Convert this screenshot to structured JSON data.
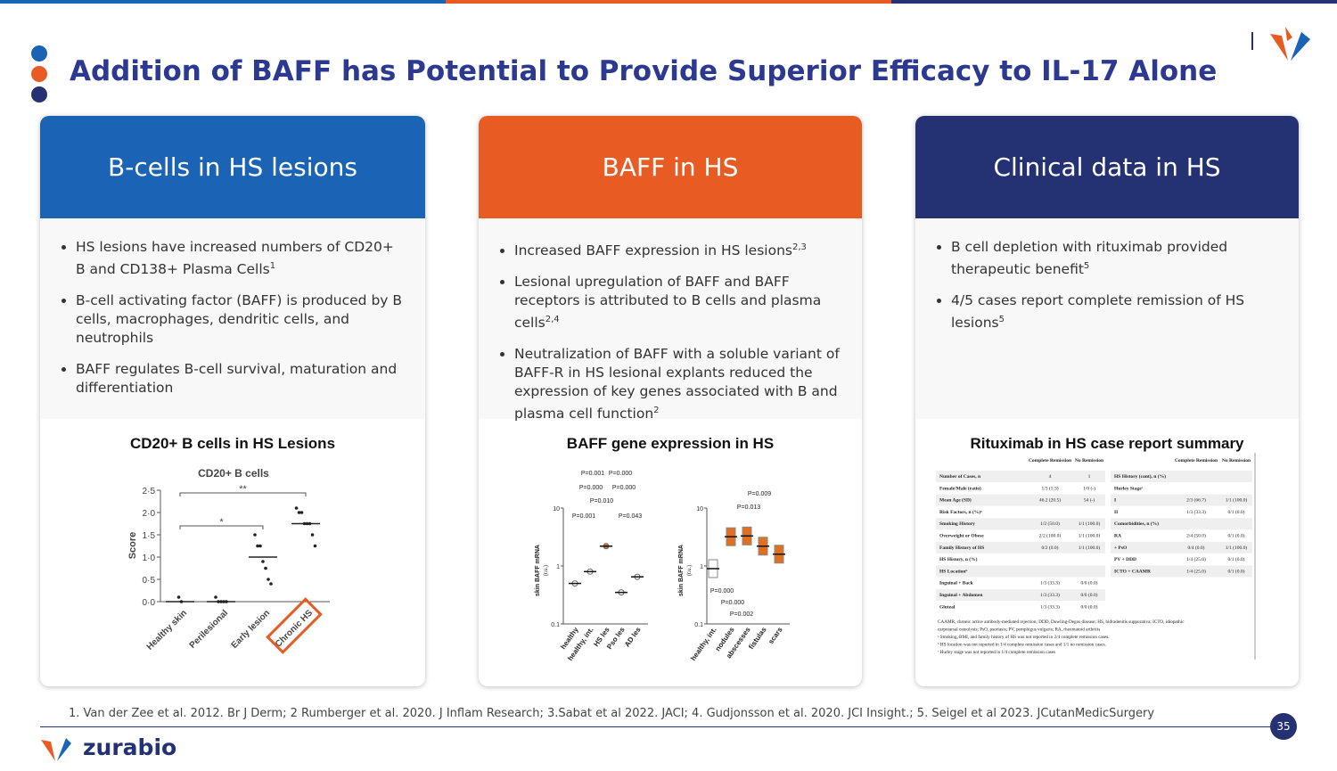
{
  "header": {
    "title": "Addition of BAFF has Potential to Provide Superior Efficacy to IL-17 Alone"
  },
  "cards": [
    {
      "heading": "B-cells in HS lesions",
      "bullets": [
        {
          "text": "HS lesions have increased numbers of CD20+ B and CD138+ Plasma Cells",
          "sup": "1"
        },
        {
          "text": "B-cell activating factor (BAFF) is produced by B cells, macrophages, dendritic cells, and neutrophils"
        },
        {
          "text": "BAFF regulates B-cell survival, maturation and differentiation"
        }
      ],
      "figure_title": "CD20+ B cells in HS Lesions"
    },
    {
      "heading": "BAFF in HS",
      "bullets": [
        {
          "text": "Increased BAFF expression in HS lesions",
          "sup": "2,3"
        },
        {
          "text": "Lesional upregulation of BAFF and BAFF receptors is attributed to B cells and plasma cells",
          "sup": "2,4"
        },
        {
          "text": "Neutralization of BAFF with a soluble variant of BAFF-R in HS lesional explants reduced the expression of key genes associated with B and plasma cell function",
          "sup": "2"
        }
      ],
      "figure_title": "BAFF gene expression in HS"
    },
    {
      "heading": "Clinical data in HS",
      "bullets": [
        {
          "text": "B cell depletion with rituximab provided therapeutic benefit",
          "sup": "5"
        },
        {
          "text": "4/5 cases report complete remission of HS lesions",
          "sup": "5"
        }
      ],
      "figure_title": "Rituximab in HS case report summary"
    }
  ],
  "figure1": {
    "title": "CD20+ B cells",
    "ylabel": "Score",
    "ylim": [
      0,
      2.5
    ],
    "yticks": [
      {
        "value": 0,
        "label": "0·0"
      },
      {
        "value": 0.5,
        "label": "0·5"
      },
      {
        "value": 1,
        "label": "1·0"
      },
      {
        "value": 1.5,
        "label": "1·5"
      },
      {
        "value": 2,
        "label": "2·0"
      },
      {
        "value": 2.5,
        "label": "2·5"
      }
    ],
    "categories": [
      "Healthy skin",
      "Perilesional",
      "Early lesion",
      "Chronic HS"
    ],
    "points": [
      [
        0.1,
        0
      ],
      [
        0.1,
        0,
        0,
        0,
        0
      ],
      [
        1.5,
        1.25,
        1.25,
        0.9,
        0.75,
        0.5,
        0.4
      ],
      [
        2.1,
        2.0,
        2.0,
        1.75,
        1.75,
        1.75,
        1.5,
        1.25
      ]
    ],
    "means": [
      0,
      0,
      1.0,
      1.75
    ],
    "significance": [
      "**",
      "*"
    ]
  },
  "figure2": {
    "ylabel": "skin BAFF mRNA",
    "yunit": "(r.u.)",
    "ylim": [
      0.1,
      10
    ],
    "log": true,
    "yticks": [
      0.1,
      1,
      10
    ],
    "panels": [
      {
        "categories": [
          "healthy",
          "healthy, int.",
          "HS les",
          "Pso les",
          "AD les"
        ],
        "medians": [
          0.5,
          0.8,
          2.2,
          0.35,
          0.65
        ],
        "p_labels": [
          "P=0.001",
          "P=0.000",
          "P=0.000",
          "P=0.000",
          "P=0.010",
          "P=0.001",
          "P=0.043"
        ]
      },
      {
        "categories": [
          "healthy, int.",
          "nodules",
          "abscesses",
          "fistulas",
          "scars"
        ],
        "medians": [
          0.9,
          3.2,
          3.3,
          2.2,
          1.6
        ],
        "p_labels": [
          "P=0.009",
          "P=0.013",
          "P=0.000",
          "P=0.000",
          "P=0.002"
        ]
      }
    ]
  },
  "table": {
    "headers": [
      "Complete Remission",
      "No Remission"
    ],
    "left_rows": [
      [
        "Number of Cases, n",
        "4",
        "1"
      ],
      [
        "Female/Male (ratio)",
        "1/3 (1:3)",
        "1/0 (-)"
      ],
      [
        "Mean Age (SD)",
        "46.2 (20.5)",
        "54 (-)"
      ],
      [
        "Risk Factors, n (%)ᵃ"
      ],
      [
        "Smoking History",
        "1/2 (50.0)",
        "1/1 (100.0)"
      ],
      [
        "Overweight or Obese",
        "2/2 (100.0)",
        "1/1 (100.0)"
      ],
      [
        "Family History of HS",
        "0/2 (0.0)",
        "1/1 (100.0)"
      ],
      [
        "HS History, n (%)"
      ],
      [
        "HS Locationᵇ"
      ],
      [
        "Inguinal + Back",
        "1/3 (33.3)",
        "0/0 (0.0)"
      ],
      [
        "Inguinal + Abdomen",
        "1/3 (33.3)",
        "0/0 (0.0)"
      ],
      [
        "Gluteal",
        "1/3 (33.3)",
        "0/0 (0.0)"
      ]
    ],
    "right_rows": [
      [
        "HS History (cont), n (%)"
      ],
      [
        "Hurley Stageᶜ"
      ],
      [
        "I",
        "2/3 (66.7)",
        "1/1 (100.0)"
      ],
      [
        "II",
        "1/3 (33.3)",
        "0/1 (0.0)"
      ],
      [
        "Comorbidities, n (%)"
      ],
      [
        "RA",
        "2/4 (50.0)",
        "0/1 (0.0)"
      ],
      [
        "+ PsO",
        "0/4 (0.0)",
        "1/1 (100.0)"
      ],
      [
        "PV + DDD",
        "1/4 (25.0)",
        "0/1 (0.0)"
      ],
      [
        "ICTO + CAAMR",
        "1/4 (25.0)",
        "0/1 (0.0)"
      ]
    ],
    "footnotes": [
      "CAAMR, chronic active antibody-mediated rejection; DDD, Dowling-Degos disease; HS, hidradenitis suppurativa; ICTO, idiopathic",
      "carpotarsal osteolysis; PsO, psoriasis; PV, pemphigus vulgaris; RA, rheumatoid arthritis",
      "ᵃ Smoking, BMI, and family history of HS was not reported in 2/4 complete remission cases.",
      "ᵇ HS location was not reported in 1/4 complete remission cases and 1/1 no remission cases.",
      "ᶜ Hurley stage was not reported in 1/4 complete remission cases"
    ]
  },
  "footer": {
    "references": "1. Van der Zee et al. 2012. Br J Derm; 2 Rumberger et al. 2020. J Inflam Research; 3.Sabat et al 2022. JACI; 4. Gudjonsson et al. 2020. JCI Insight.; 5. Seigel et al 2023. JCutanMedicSurgery",
    "page_number": "35",
    "logo_text": "zurabio"
  }
}
